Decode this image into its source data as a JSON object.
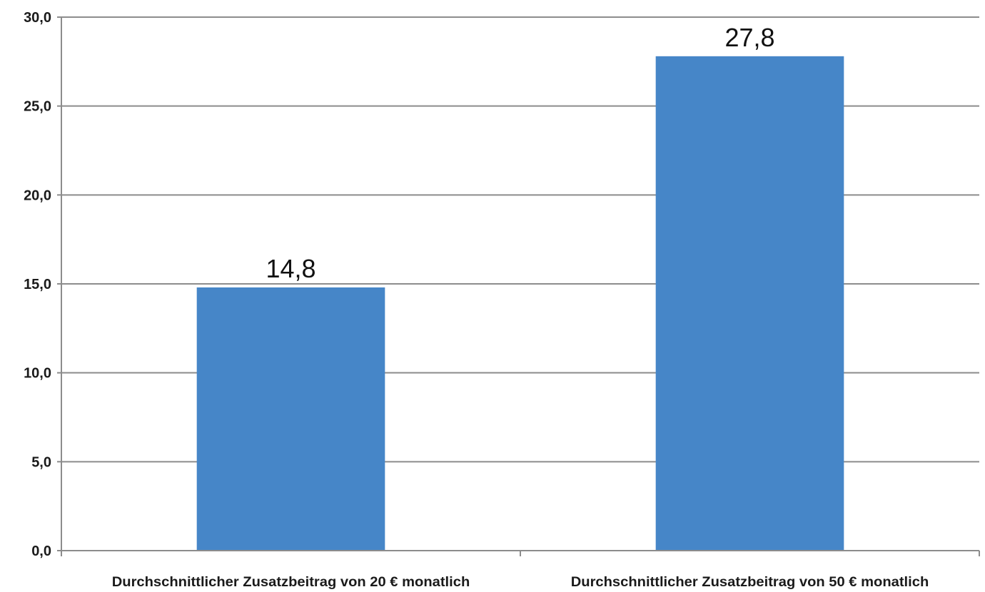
{
  "chart_data": {
    "type": "bar",
    "categories": [
      "Durchschnittlicher Zusatzbeitrag von 20 € monatlich",
      "Durchschnittlicher Zusatzbeitrag von 50 € monatlich"
    ],
    "values": [
      14.8,
      27.8
    ],
    "data_labels": [
      "14,8",
      "27,8"
    ],
    "y_ticks": [
      0,
      5,
      10,
      15,
      20,
      25,
      30
    ],
    "y_tick_labels": [
      "0,0",
      "5,0",
      "10,0",
      "15,0",
      "20,0",
      "25,0",
      "30,0"
    ],
    "ylim": [
      0,
      30
    ],
    "title": "",
    "xlabel": "",
    "ylabel": "",
    "grid": true,
    "legend": "none",
    "bar_color": "#4686c8"
  }
}
